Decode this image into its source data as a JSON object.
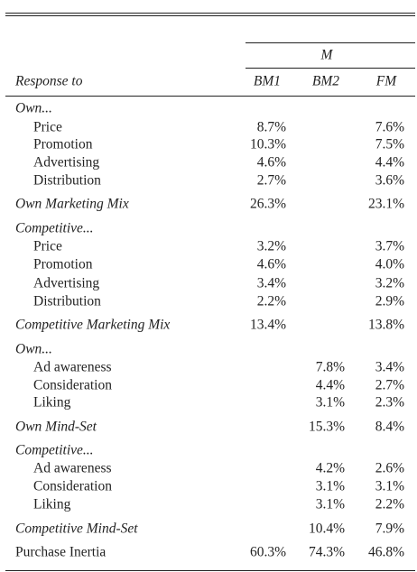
{
  "table": {
    "spanner": "M",
    "header": [
      "Response to",
      "BM1",
      "BM2",
      "FM"
    ],
    "rows": [
      [
        "Own...",
        null,
        null,
        null
      ],
      [
        "Price",
        "8.7%",
        null,
        "7.6%"
      ],
      [
        "Promotion",
        "10.3%",
        null,
        "7.5%"
      ],
      [
        "Advertising",
        "4.6%",
        null,
        "4.4%"
      ],
      [
        "Distribution",
        "2.7%",
        null,
        "3.6%"
      ],
      [
        "Own Marketing Mix",
        "26.3%",
        null,
        "23.1%"
      ],
      [
        "Competitive...",
        null,
        null,
        null
      ],
      [
        "Price",
        "3.2%",
        null,
        "3.7%"
      ],
      [
        "Promotion",
        "4.6%",
        null,
        "4.0%"
      ],
      [
        "Advertising",
        "3.4%",
        null,
        "3.2%"
      ],
      [
        "Distribution",
        "2.2%",
        null,
        "2.9%"
      ],
      [
        "Competitive Marketing Mix",
        "13.4%",
        null,
        "13.8%"
      ],
      [
        "Own...",
        null,
        null,
        null
      ],
      [
        "Ad awareness",
        null,
        "7.8%",
        "3.4%"
      ],
      [
        "Consideration",
        null,
        "4.4%",
        "2.7%"
      ],
      [
        "Liking",
        null,
        "3.1%",
        "2.3%"
      ],
      [
        "Own Mind-Set",
        null,
        "15.3%",
        "8.4%"
      ],
      [
        "Competitive...",
        null,
        null,
        null
      ],
      [
        "Ad awareness",
        null,
        "4.2%",
        "2.6%"
      ],
      [
        "Consideration",
        null,
        "3.1%",
        "3.1%"
      ],
      [
        "Liking",
        null,
        "3.1%",
        "2.2%"
      ],
      [
        "Competitive Mind-Set",
        null,
        "10.4%",
        "7.9%"
      ],
      [
        "Purchase Inertia",
        "60.3%",
        "74.3%",
        "46.8%"
      ]
    ]
  }
}
